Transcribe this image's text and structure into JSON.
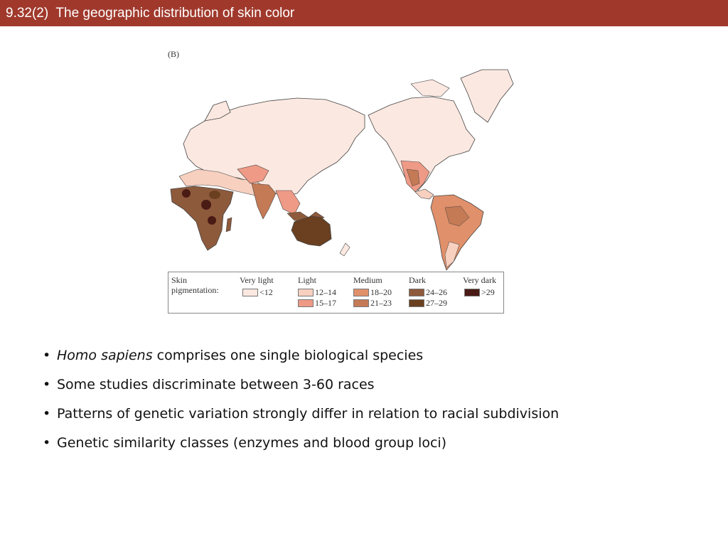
{
  "header": {
    "title": "9.32(2)  The geographic distribution of skin color",
    "bg_color": "#a0392c"
  },
  "figure": {
    "panel_label": "(B)",
    "legend": {
      "title_line1": "Skin",
      "title_line2": "pigmentation:",
      "groups": [
        {
          "name": "Very light",
          "ranges": [
            {
              "label": "<12",
              "color": "#fbe8e0"
            }
          ]
        },
        {
          "name": "Light",
          "ranges": [
            {
              "label": "12–14",
              "color": "#f7d0c0"
            },
            {
              "label": "15–17",
              "color": "#ef9a86"
            }
          ]
        },
        {
          "name": "Medium",
          "ranges": [
            {
              "label": "18–20",
              "color": "#e0906a"
            },
            {
              "label": "21–23",
              "color": "#c47a55"
            }
          ]
        },
        {
          "name": "Dark",
          "ranges": [
            {
              "label": "24–26",
              "color": "#8e5a3c"
            },
            {
              "label": "27–29",
              "color": "#6a4020"
            }
          ]
        },
        {
          "name": "Very dark",
          "ranges": [
            {
              "label": ">29",
              "color": "#4a1a14"
            }
          ]
        }
      ]
    }
  },
  "bullets": [
    {
      "italic": "Homo sapiens",
      "text": " comprises one single biological species"
    },
    {
      "italic": "",
      "text": "Some studies discriminate between 3-60 races"
    },
    {
      "italic": "",
      "text": "Patterns of genetic variation strongly differ in relation to racial subdivision"
    },
    {
      "italic": "",
      "text": "Genetic similarity classes (enzymes and blood group loci)"
    }
  ]
}
